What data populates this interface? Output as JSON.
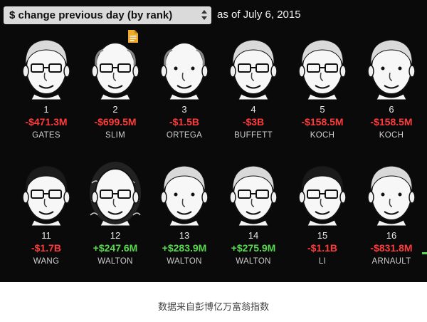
{
  "header": {
    "selector_label": "$ change previous day (by rank)",
    "as_of": "as of July 6, 2015"
  },
  "people": [
    {
      "rank": "1",
      "change": "-$471.3M",
      "name": "GATES",
      "trend": "neg"
    },
    {
      "rank": "2",
      "change": "-$699.5M",
      "name": "SLIM",
      "trend": "neg"
    },
    {
      "rank": "3",
      "change": "-$1.5B",
      "name": "ORTEGA",
      "trend": "neg"
    },
    {
      "rank": "4",
      "change": "-$3B",
      "name": "BUFFETT",
      "trend": "neg"
    },
    {
      "rank": "5",
      "change": "-$158.5M",
      "name": "KOCH",
      "trend": "neg"
    },
    {
      "rank": "6",
      "change": "-$158.5M",
      "name": "KOCH",
      "trend": "neg"
    },
    {
      "rank": "11",
      "change": "-$1.7B",
      "name": "WANG",
      "trend": "neg"
    },
    {
      "rank": "12",
      "change": "+$247.6M",
      "name": "WALTON",
      "trend": "pos"
    },
    {
      "rank": "13",
      "change": "+$283.9M",
      "name": "WALTON",
      "trend": "pos"
    },
    {
      "rank": "14",
      "change": "+$275.9M",
      "name": "WALTON",
      "trend": "pos"
    },
    {
      "rank": "15",
      "change": "-$1.1B",
      "name": "LI",
      "trend": "neg"
    },
    {
      "rank": "16",
      "change": "-$831.8M",
      "name": "ARNAULT",
      "trend": "neg"
    }
  ],
  "caption": "数据来自彭博亿万富翁指数",
  "colors": {
    "negative": "#ff3b3b",
    "positive": "#58d94f",
    "background": "#0a0a0a"
  }
}
